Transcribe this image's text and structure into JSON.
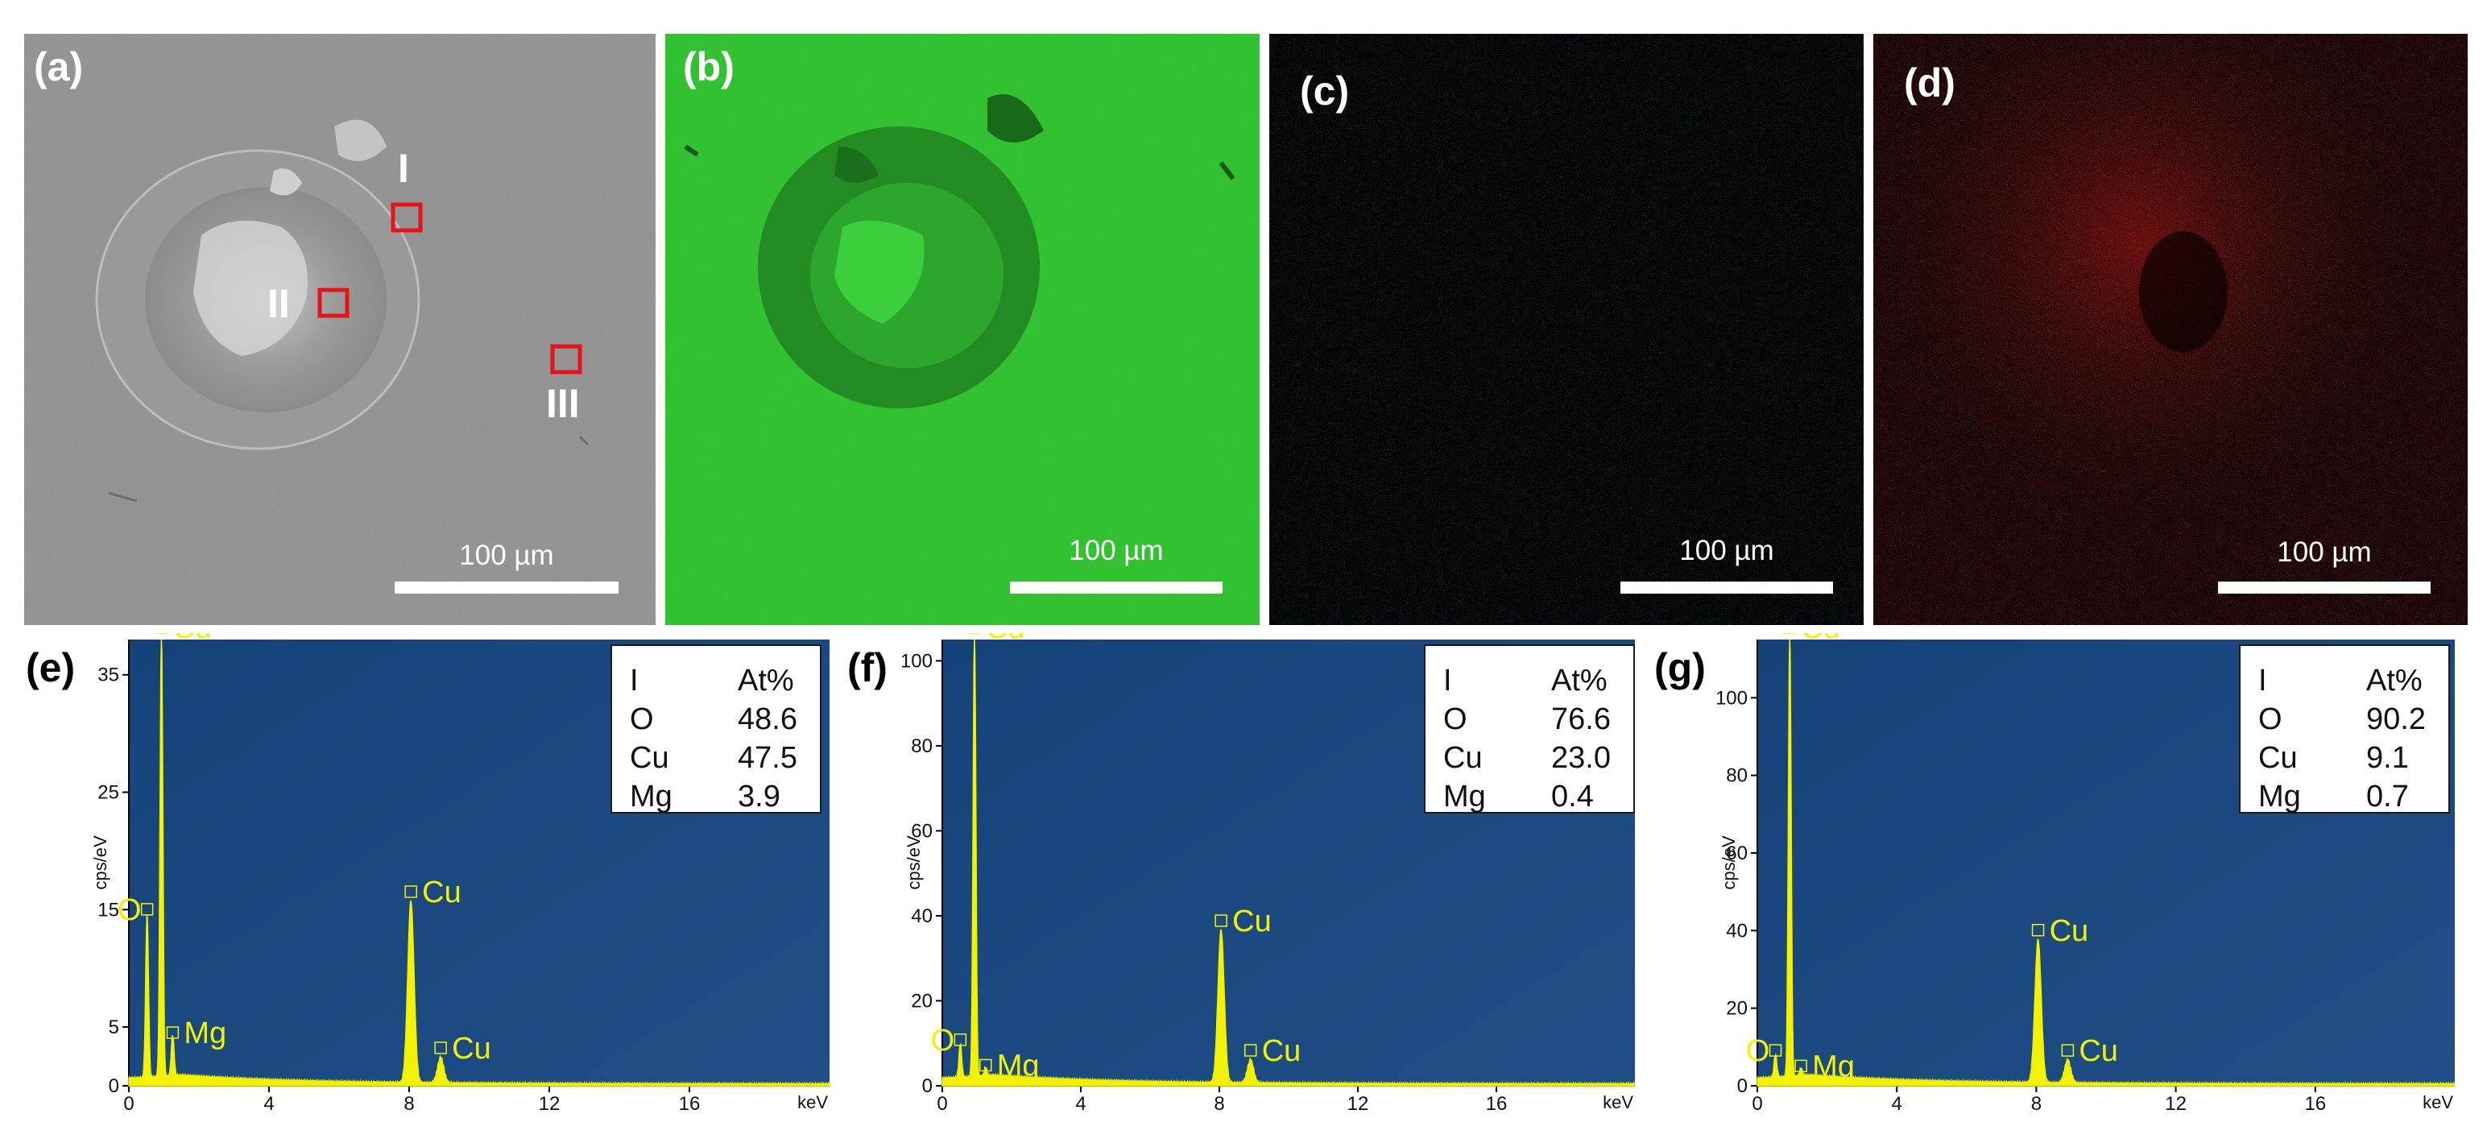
{
  "panels": {
    "a": {
      "label": "(a)",
      "scale": "100 µm",
      "regions": [
        "I",
        "II",
        "III"
      ]
    },
    "b": {
      "label": "(b)",
      "scale": "100 µm",
      "color": "#2fc12f"
    },
    "c": {
      "label": "(c)",
      "scale": "100 µm",
      "color": "#2ab9c2"
    },
    "d": {
      "label": "(d)",
      "scale": "100 µm",
      "color": "#c81414"
    }
  },
  "colors": {
    "spectrum_bg": "#1f4f86",
    "peak": "#f2f200",
    "marker_box": "#e8121a"
  },
  "chart_data": [
    {
      "type": "line",
      "panel_label": "(e)",
      "ylabel": "cps/eV",
      "xlabel": "keV",
      "xlim": [
        0,
        20
      ],
      "ylim": [
        0,
        38
      ],
      "xticks": [
        0,
        4,
        8,
        12,
        16
      ],
      "yticks": [
        0,
        5,
        15,
        25,
        35
      ],
      "peaks": [
        {
          "element": "O",
          "x": 0.52,
          "y": 14.0
        },
        {
          "element": "Cu",
          "x": 0.93,
          "y": 38.0
        },
        {
          "element": "Mg",
          "x": 1.25,
          "y": 3.5
        },
        {
          "element": "Cu",
          "x": 8.05,
          "y": 15.5
        },
        {
          "element": "Cu",
          "x": 8.9,
          "y": 2.2
        }
      ],
      "peak_labels": [
        {
          "text": "O",
          "x": 0.52,
          "y": 14.0
        },
        {
          "text": "Cu",
          "x": 0.93,
          "y": 38.0
        },
        {
          "text": "Mg",
          "x": 1.25,
          "y": 3.5
        },
        {
          "text": "Cu",
          "x": 8.05,
          "y": 15.5
        },
        {
          "text": "Cu",
          "x": 8.9,
          "y": 2.2
        }
      ],
      "composition": {
        "header": [
          "I",
          "At%"
        ],
        "rows": [
          [
            "O",
            "48.6"
          ],
          [
            "Cu",
            "47.5"
          ],
          [
            "Mg",
            "3.9"
          ]
        ]
      }
    },
    {
      "type": "line",
      "panel_label": "(f)",
      "ylabel": "cps/eV",
      "xlabel": "keV",
      "xlim": [
        0,
        20
      ],
      "ylim": [
        0,
        105
      ],
      "xticks": [
        0,
        4,
        8,
        12,
        16
      ],
      "yticks": [
        0,
        20,
        40,
        60,
        80,
        100
      ],
      "peaks": [
        {
          "element": "O",
          "x": 0.52,
          "y": 8.0
        },
        {
          "element": "Cu",
          "x": 0.93,
          "y": 105.0
        },
        {
          "element": "Mg",
          "x": 1.25,
          "y": 2.0
        },
        {
          "element": "Cu",
          "x": 8.05,
          "y": 36.0
        },
        {
          "element": "Cu",
          "x": 8.9,
          "y": 5.5
        }
      ],
      "peak_labels": [
        {
          "text": "O",
          "x": 0.52,
          "y": 8.0
        },
        {
          "text": "Cu",
          "x": 0.93,
          "y": 105.0
        },
        {
          "text": "Mg",
          "x": 1.25,
          "y": 2.0
        },
        {
          "text": "Cu",
          "x": 8.05,
          "y": 36.0
        },
        {
          "text": "Cu",
          "x": 8.9,
          "y": 5.5
        }
      ],
      "composition": {
        "header": [
          "I",
          "At%"
        ],
        "rows": [
          [
            "O",
            "76.6"
          ],
          [
            "Cu",
            "23.0"
          ],
          [
            "Mg",
            "0.4"
          ]
        ]
      }
    },
    {
      "type": "line",
      "panel_label": "(g)",
      "ylabel": "cps/eV",
      "xlabel": "keV",
      "xlim": [
        0,
        20
      ],
      "ylim": [
        0,
        115
      ],
      "xticks": [
        0,
        4,
        8,
        12,
        16
      ],
      "yticks": [
        0,
        20,
        40,
        60,
        80,
        100
      ],
      "peaks": [
        {
          "element": "O",
          "x": 0.52,
          "y": 6.0
        },
        {
          "element": "Cu",
          "x": 0.93,
          "y": 115.0
        },
        {
          "element": "Mg",
          "x": 1.25,
          "y": 2.0
        },
        {
          "element": "Cu",
          "x": 8.05,
          "y": 37.0
        },
        {
          "element": "Cu",
          "x": 8.9,
          "y": 6.0
        }
      ],
      "peak_labels": [
        {
          "text": "O",
          "x": 0.52,
          "y": 6.0
        },
        {
          "text": "Cu",
          "x": 0.93,
          "y": 115.0
        },
        {
          "text": "Mg",
          "x": 1.25,
          "y": 2.0
        },
        {
          "text": "Cu",
          "x": 8.05,
          "y": 37.0
        },
        {
          "text": "Cu",
          "x": 8.9,
          "y": 6.0
        }
      ],
      "composition": {
        "header": [
          "I",
          "At%"
        ],
        "rows": [
          [
            "O",
            "90.2"
          ],
          [
            "Cu",
            "9.1"
          ],
          [
            "Mg",
            "0.7"
          ]
        ]
      }
    }
  ]
}
